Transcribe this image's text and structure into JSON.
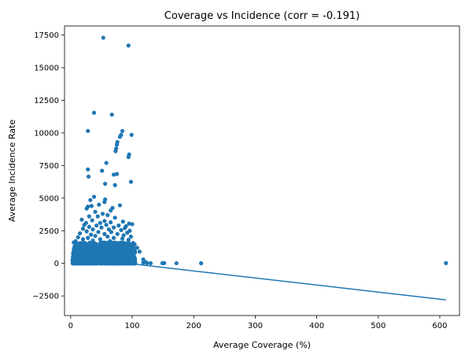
{
  "chart_data": {
    "type": "scatter",
    "title": "Coverage vs Incidence (corr = -0.191)",
    "xlabel": "Average Coverage (%)",
    "ylabel": "Average Incidence Rate",
    "xlim": [
      -10,
      632
    ],
    "ylim": [
      -4000,
      18200
    ],
    "x_ticks": [
      0,
      100,
      200,
      300,
      400,
      500,
      600
    ],
    "y_ticks": [
      -2500,
      0,
      2500,
      5000,
      7500,
      10000,
      12500,
      15000,
      17500
    ],
    "grid": false,
    "legend": "none",
    "point_color": "#1f77b4",
    "line_color": "#1f77b4",
    "trend_line": {
      "x": [
        0,
        610
      ],
      "y": [
        500,
        -2800
      ]
    },
    "points": [
      [
        53,
        17300
      ],
      [
        94,
        16700
      ],
      [
        38,
        11550
      ],
      [
        67,
        11400
      ],
      [
        28,
        10150
      ],
      [
        84,
        10150
      ],
      [
        82,
        9850
      ],
      [
        99,
        9850
      ],
      [
        80,
        9700
      ],
      [
        76,
        9300
      ],
      [
        75,
        9100
      ],
      [
        74,
        8800
      ],
      [
        73,
        8600
      ],
      [
        95,
        8350
      ],
      [
        94,
        8150
      ],
      [
        58,
        7700
      ],
      [
        28,
        7200
      ],
      [
        51,
        7100
      ],
      [
        75,
        6850
      ],
      [
        70,
        6800
      ],
      [
        29,
        6650
      ],
      [
        56,
        6100
      ],
      [
        72,
        6000
      ],
      [
        98,
        6250
      ],
      [
        38,
        5100
      ],
      [
        32,
        4850
      ],
      [
        56,
        4900
      ],
      [
        55,
        4700
      ],
      [
        46,
        4500
      ],
      [
        80,
        4450
      ],
      [
        28,
        4350
      ],
      [
        34,
        4400
      ],
      [
        68,
        4250
      ],
      [
        26,
        4200
      ],
      [
        65,
        4050
      ],
      [
        40,
        3950
      ],
      [
        52,
        3800
      ],
      [
        30,
        3600
      ],
      [
        44,
        3600
      ],
      [
        60,
        3700
      ],
      [
        72,
        3500
      ],
      [
        18,
        3350
      ],
      [
        35,
        3300
      ],
      [
        55,
        3250
      ],
      [
        85,
        3200
      ],
      [
        25,
        3100
      ],
      [
        48,
        3100
      ],
      [
        65,
        3150
      ],
      [
        95,
        3050
      ],
      [
        100,
        3000
      ],
      [
        22,
        2950
      ],
      [
        42,
        2900
      ],
      [
        58,
        2950
      ],
      [
        78,
        2900
      ],
      [
        90,
        2850
      ],
      [
        30,
        2800
      ],
      [
        50,
        2750
      ],
      [
        70,
        2750
      ],
      [
        88,
        2700
      ],
      [
        20,
        2650
      ],
      [
        36,
        2600
      ],
      [
        62,
        2600
      ],
      [
        82,
        2550
      ],
      [
        96,
        2500
      ],
      [
        26,
        2450
      ],
      [
        45,
        2400
      ],
      [
        66,
        2400
      ],
      [
        92,
        2350
      ],
      [
        15,
        2300
      ],
      [
        55,
        2250
      ],
      [
        76,
        2250
      ],
      [
        33,
        2200
      ],
      [
        86,
        2150
      ],
      [
        40,
        2100
      ],
      [
        60,
        2050
      ],
      [
        98,
        2050
      ],
      [
        12,
        2000
      ],
      [
        28,
        1950
      ],
      [
        70,
        1950
      ],
      [
        84,
        1900
      ],
      [
        20,
        1850
      ],
      [
        48,
        1850
      ],
      [
        94,
        1800
      ],
      [
        8,
        1700
      ],
      [
        36,
        1750
      ],
      [
        64,
        1700
      ],
      [
        5,
        1600
      ],
      [
        16,
        1550
      ],
      [
        52,
        1600
      ],
      [
        80,
        1550
      ],
      [
        102,
        1500
      ],
      [
        108,
        1200
      ],
      [
        112,
        900
      ],
      [
        118,
        300
      ],
      [
        122,
        100
      ],
      [
        118,
        50
      ],
      [
        124,
        20
      ],
      [
        130,
        10
      ],
      [
        149,
        10
      ],
      [
        152,
        20
      ],
      [
        172,
        10
      ],
      [
        212,
        5
      ],
      [
        610,
        20
      ]
    ]
  }
}
